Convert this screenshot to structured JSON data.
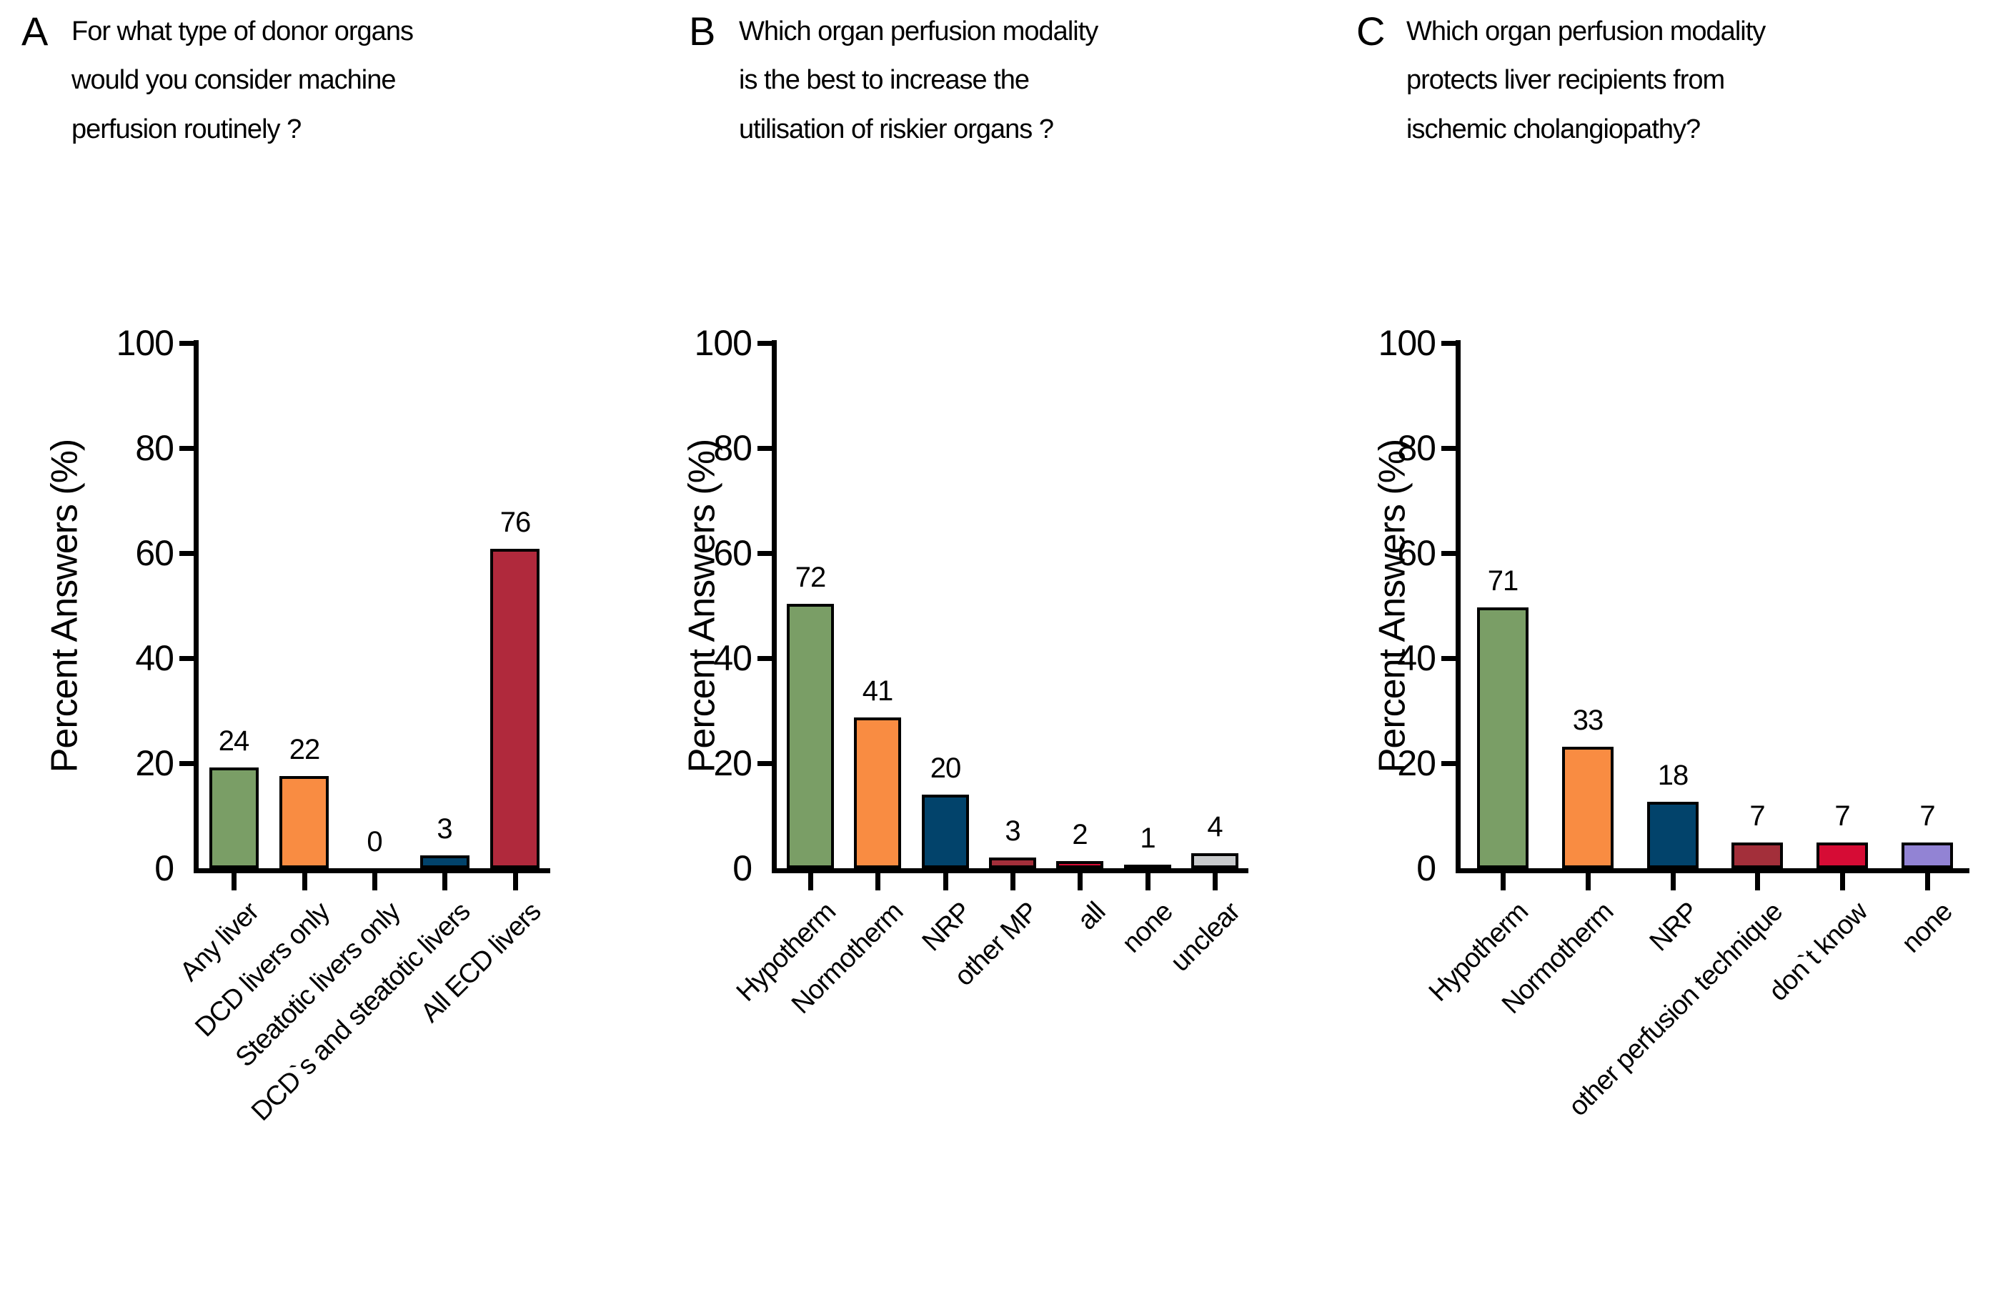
{
  "figure": {
    "background": "#ffffff",
    "text_color": "#000000"
  },
  "chart_data": [
    {
      "type": "bar",
      "panel_label": "A",
      "title": "For what type of donor organs would you consider machine perfusion routinely ?",
      "ylabel": "Percent Answers (%)",
      "ylim": [
        0,
        100
      ],
      "yticks": [
        0,
        20,
        40,
        60,
        80,
        100
      ],
      "grid": false,
      "legend": "none",
      "categories": [
        "Any liver",
        "DCD livers only",
        "Steatotic livers only",
        "DCD`s and steatotic livers",
        "All ECD livers"
      ],
      "values": [
        24,
        22,
        0,
        3,
        76
      ],
      "bar_heights_percent": [
        19.2,
        17.6,
        0,
        2.4,
        60.8
      ],
      "bar_colors": [
        "#7A9E66",
        "#F98C42",
        "#02436B",
        "#02436B",
        "#B0293C"
      ]
    },
    {
      "type": "bar",
      "panel_label": "B",
      "title": "Which organ perfusion modality is the best to increase the utilisation of riskier organs ?",
      "ylabel": "Percent Answers (%)",
      "ylim": [
        0,
        100
      ],
      "yticks": [
        0,
        20,
        40,
        60,
        80,
        100
      ],
      "grid": false,
      "legend": "none",
      "categories": [
        "Hypotherm",
        "Normotherm",
        "NRP",
        "other MP",
        "all",
        "none",
        "unclear"
      ],
      "values": [
        72,
        41,
        20,
        3,
        2,
        1,
        4
      ],
      "bar_heights_percent": [
        50.3,
        28.7,
        14.0,
        2.1,
        1.4,
        0.7,
        2.8
      ],
      "bar_colors": [
        "#7A9E66",
        "#F98C42",
        "#02436B",
        "#A32F3A",
        "#D60C35",
        "#9283D4",
        "#C8CACC"
      ]
    },
    {
      "type": "bar",
      "panel_label": "C",
      "title": "Which organ perfusion modality protects liver recipients from ischemic cholangiopathy?",
      "ylabel": "Percent Answers (%)",
      "ylim": [
        0,
        100
      ],
      "yticks": [
        0,
        20,
        40,
        60,
        80,
        100
      ],
      "grid": false,
      "legend": "none",
      "categories": [
        "Hypotherm",
        "Normotherm",
        "NRP",
        "other perfusion technique",
        "don`t know",
        "none"
      ],
      "values": [
        71,
        33,
        18,
        7,
        7,
        7
      ],
      "bar_heights_percent": [
        49.7,
        23.1,
        12.6,
        4.9,
        4.9,
        4.9
      ],
      "bar_colors": [
        "#7A9E66",
        "#F98C42",
        "#02436B",
        "#A32F3A",
        "#D60C35",
        "#9283D4"
      ]
    }
  ]
}
